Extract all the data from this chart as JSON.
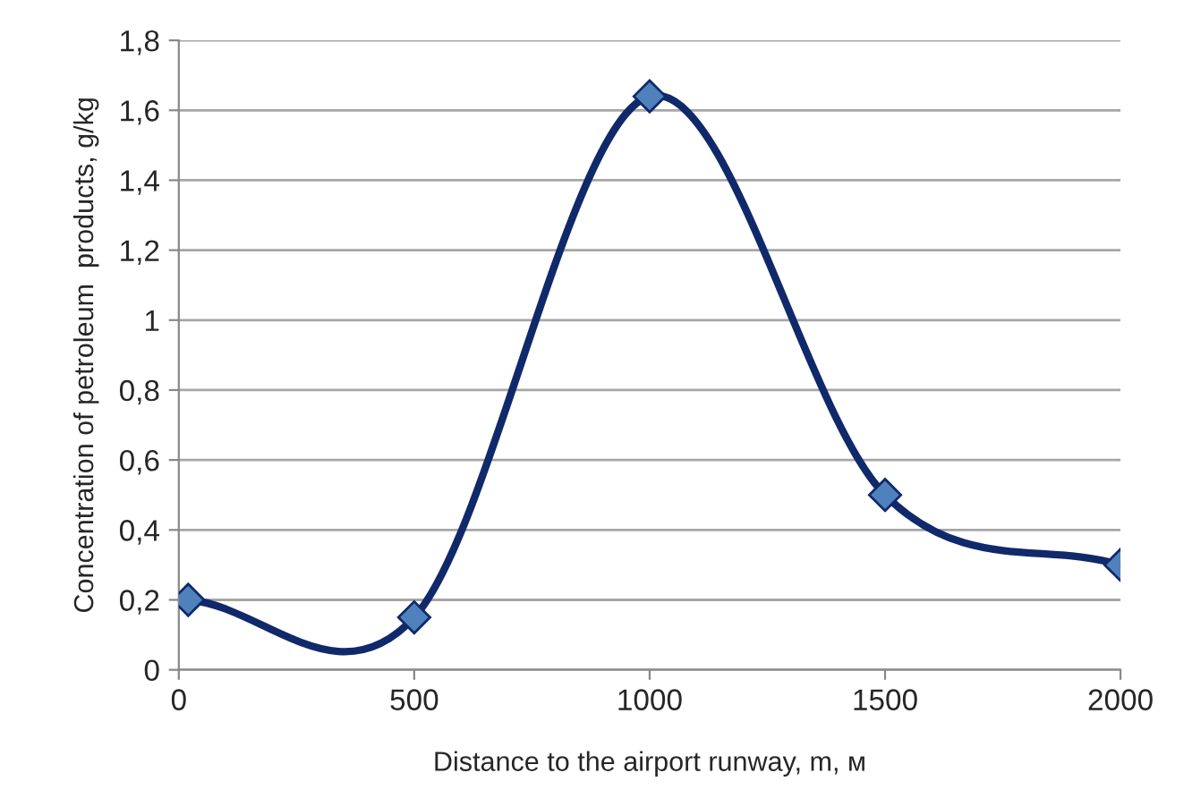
{
  "chart_data": {
    "type": "line",
    "xlabel": "Distance to the airport runway, m, м",
    "ylabel": "Concentration of petroleum  products, g/kg",
    "x": [
      20,
      500,
      1000,
      1500,
      2000
    ],
    "series": [
      {
        "color": "#10296b",
        "colors": [
          "#4f81bd",
          "#4f81bd",
          "#4f81bd",
          "#4f81bd",
          "#4f81bd"
        ],
        "values": [
          0.2,
          0.15,
          1.64,
          0.5,
          0.3
        ]
      }
    ],
    "xlim": [
      0,
      2000
    ],
    "xticks": [
      0,
      500,
      1000,
      1500,
      2000
    ],
    "ylim": [
      0,
      1.8
    ],
    "yticks": [
      {
        "value": 0,
        "label": "0"
      },
      {
        "value": 0.2,
        "label": "0,2"
      },
      {
        "value": 0.4,
        "label": "0,4"
      },
      {
        "value": 0.6,
        "label": "0,6"
      },
      {
        "value": 0.8,
        "label": "0,8"
      },
      {
        "value": 1,
        "label": "1"
      },
      {
        "value": 1.2,
        "label": "1,2"
      },
      {
        "value": 1.4,
        "label": "1,4"
      },
      {
        "value": 1.6,
        "label": "1,6"
      },
      {
        "value": 1.8,
        "label": "1,8"
      }
    ],
    "grid": "y",
    "marker": "diamond",
    "line_style": "solid"
  }
}
